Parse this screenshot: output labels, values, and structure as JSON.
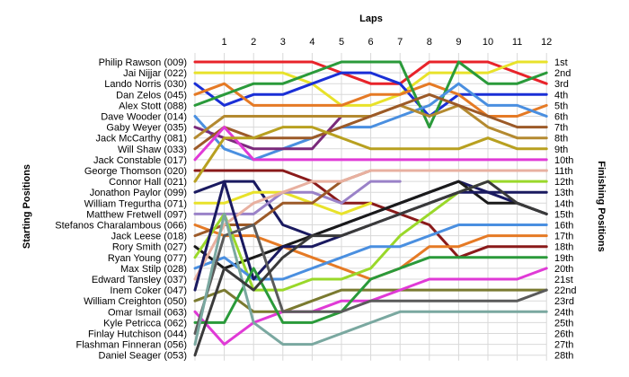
{
  "chart_data": {
    "type": "line",
    "title": "",
    "xlabel": "Laps",
    "ylabel_left": "Starting Positions",
    "ylabel_right": "Finishing Positions",
    "laps": [
      1,
      2,
      3,
      4,
      5,
      6,
      7,
      8,
      9,
      10,
      11,
      12
    ],
    "position_count": 28,
    "grid": true,
    "starting_labels": [
      "Philip Rawson (009)",
      "Jai Nijjar (022)",
      "Lando Norris (030)",
      "Dan Zelos (045)",
      "Alex Stott (088)",
      "Dave Wooder (014)",
      "Gaby Weyer (035)",
      "Jack McCarthy (081)",
      "Will Shaw (033)",
      "Jack Constable (017)",
      "George Thomson (020)",
      "Connor Hall (021)",
      "Jonathon Paylor (099)",
      "William Tregurtha (071)",
      "Matthew Fretwell (097)",
      "Stefanos Charalambous (066)",
      "Jack Leese (018)",
      "Rory Smith (027)",
      "Ryan Young (077)",
      "Max Stilp (028)",
      "Edward Tansley (037)",
      "Inem Coker (047)",
      "William Creighton (050)",
      "Omar Ismail (063)",
      "Kyle Petricca (062)",
      "Finlay Hutchison (044)",
      "Flashman Finneran (056)",
      "Daniel Seager (053)"
    ],
    "finishing_labels": [
      "1st",
      "2nd",
      "3rd",
      "4th",
      "5th",
      "6th",
      "7th",
      "8th",
      "9th",
      "10th",
      "11th",
      "12th",
      "13th",
      "14th",
      "15th",
      "16th",
      "17th",
      "18th",
      "19th",
      "20th",
      "21st",
      "22nd",
      "23rd",
      "24th",
      "25th",
      "26th",
      "27th",
      "28th"
    ],
    "series": [
      {
        "start": 1,
        "color": "#e8232a",
        "positions": [
          1,
          1,
          1,
          1,
          2,
          3,
          3,
          1,
          1,
          1,
          2,
          3
        ]
      },
      {
        "start": 2,
        "color": "#e8e22a",
        "positions": [
          2,
          2,
          2,
          3,
          5,
          5,
          4,
          2,
          2,
          2,
          1,
          1
        ]
      },
      {
        "start": 3,
        "color": "#1a2fd6",
        "positions": [
          5,
          4,
          4,
          3,
          2,
          2,
          3,
          6,
          4,
          4,
          4,
          4
        ]
      },
      {
        "start": 4,
        "color": "#e57a25",
        "positions": [
          3,
          5,
          5,
          5,
          5,
          4,
          4,
          3,
          4,
          6,
          6,
          5
        ]
      },
      {
        "start": 5,
        "color": "#2a9a3a",
        "positions": [
          4,
          3,
          3,
          2,
          1,
          1,
          1,
          7,
          1,
          3,
          3,
          2
        ]
      },
      {
        "start": 6,
        "color": "#4a8fe0",
        "positions": [
          9,
          10,
          9,
          8,
          7,
          7,
          6,
          5,
          3,
          5,
          5,
          6
        ]
      },
      {
        "start": 7,
        "color": "#7a2a7a",
        "positions": [
          8,
          9,
          9,
          9,
          6
        ]
      },
      {
        "start": 8,
        "color": "#b48a30",
        "positions": [
          6,
          6,
          6,
          6,
          6,
          6,
          5,
          6,
          5,
          7,
          8,
          8
        ]
      },
      {
        "start": 9,
        "color": "#9c5a28",
        "positions": [
          7,
          8,
          8,
          8,
          7,
          6,
          5,
          4,
          5,
          6,
          7,
          7
        ]
      },
      {
        "start": 10,
        "color": "#e03ad6",
        "positions": [
          7,
          10,
          10,
          10,
          10,
          10,
          10,
          10,
          10,
          10,
          10,
          10
        ]
      },
      {
        "start": 11,
        "color": "#8a1a1a",
        "positions": [
          11,
          11,
          11,
          12,
          14,
          14,
          15,
          16,
          19,
          18,
          18,
          18
        ]
      },
      {
        "start": 12,
        "color": "#b8a020",
        "positions": [
          8,
          8,
          7,
          7,
          8,
          9,
          9,
          9,
          9,
          8,
          9,
          9
        ]
      },
      {
        "start": 13,
        "color": "#1a1a60",
        "positions": [
          12,
          12,
          16,
          17,
          16,
          15,
          14,
          13,
          12,
          13,
          14,
          15
        ]
      },
      {
        "start": 14,
        "color": "#e8e22a",
        "positions": [
          14,
          13,
          13,
          14,
          15,
          14
        ]
      },
      {
        "start": 15,
        "color": "#9a82c8",
        "positions": [
          15,
          15,
          13,
          13,
          14,
          12,
          12
        ]
      },
      {
        "start": 16,
        "color": "#e57a25",
        "positions": [
          17,
          17,
          18,
          19,
          20,
          21,
          20,
          18,
          18,
          17,
          17,
          17
        ]
      },
      {
        "start": 17,
        "color": "#9c5a28",
        "positions": [
          16,
          16,
          14,
          14,
          12,
          11,
          11,
          11,
          11,
          11,
          11,
          11
        ]
      },
      {
        "start": 18,
        "color": "#1a1a1a",
        "positions": [
          20,
          19,
          18,
          17,
          16,
          15,
          14,
          13,
          12,
          14,
          14,
          15
        ]
      },
      {
        "start": 19,
        "color": "#9ad82a",
        "positions": [
          15,
          22,
          22,
          21,
          21,
          20,
          17,
          15,
          13,
          12,
          12,
          12
        ]
      },
      {
        "start": 20,
        "color": "#4a8fe0",
        "positions": [
          19,
          21,
          21,
          20,
          19,
          18,
          18,
          17,
          16,
          16,
          16,
          16
        ]
      },
      {
        "start": 21,
        "color": "#e8b0a0",
        "positions": [
          16,
          14,
          13,
          12,
          12,
          11,
          11,
          11,
          11,
          11,
          11,
          11
        ]
      },
      {
        "start": 22,
        "color": "#1a1a60",
        "positions": [
          12,
          21,
          18,
          18,
          17,
          16,
          15,
          14,
          13,
          13,
          13,
          13
        ]
      },
      {
        "start": 23,
        "color": "#7a7a30",
        "positions": [
          22,
          24,
          24,
          23,
          22,
          22,
          22,
          22,
          22,
          22,
          22,
          22
        ]
      },
      {
        "start": 24,
        "color": "#e03ad6",
        "positions": [
          27,
          25,
          24,
          24,
          23,
          23,
          22,
          21,
          21,
          21,
          21,
          20
        ]
      },
      {
        "start": 25,
        "color": "#2a9a3a",
        "positions": [
          25,
          20,
          25,
          25,
          24,
          21,
          20,
          19,
          19,
          19,
          19,
          19
        ]
      },
      {
        "start": 26,
        "color": "#5a5a5a",
        "positions": [
          17,
          16,
          24,
          24,
          24,
          23,
          23,
          23,
          23,
          23,
          23,
          22
        ]
      },
      {
        "start": 27,
        "color": "#7aa8a0",
        "positions": [
          15,
          25,
          27,
          27,
          26,
          25,
          24,
          24,
          24,
          24,
          24,
          24
        ]
      },
      {
        "start": 28,
        "color": "#3a3a3a",
        "positions": [
          20,
          22,
          19,
          17,
          17,
          16,
          15,
          14,
          13,
          12,
          14,
          15
        ]
      }
    ]
  }
}
